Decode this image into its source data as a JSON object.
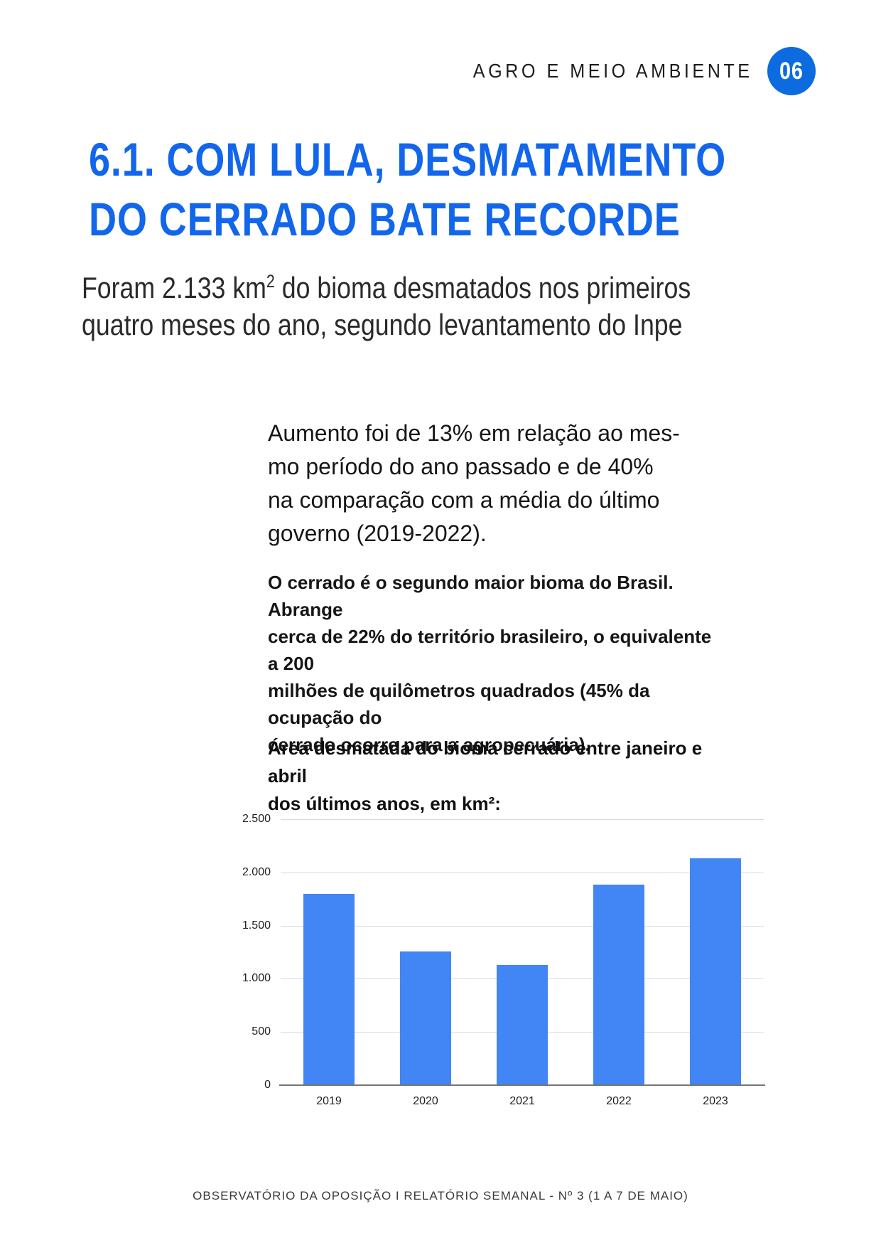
{
  "page_header": {
    "section_label": "AGRO E MEIO AMBIENTE",
    "page_badge": "06"
  },
  "article": {
    "title_line1": "6.1. COM LULA, DESMATAMENTO",
    "title_line2": "DO CERRADO BATE RECORDE",
    "subtitle_part1": "Foram 2.133 km",
    "subtitle_sup": "2",
    "subtitle_part2": " do bioma desmatados nos primeiros\nquatro meses do ano, segundo levantamento do Inpe",
    "lead_paragraph": "Aumento foi de 13% em relação ao mes-\nmo período do ano passado e de 40%\nna comparação com a média do último\ngoverno (2019-2022).",
    "body_paragraph": "O cerrado é o segundo maior bioma do Brasil. Abrange\ncerca de 22% do território brasileiro, o equivalente a 200\nmilhões de quilômetros quadrados (45% da ocupação do\ncerrado ocorre para a agropecuária).",
    "chart_heading": "Área desmatada do bioma cerrado entre janeiro e abril\ndos últimos anos, em km²:"
  },
  "footer": {
    "text": "OBSERVATÓRIO DA OPOSIÇÃO  I  RELATÓRIO SEMANAL - Nº 3 (1 A 7 DE MAIO)"
  },
  "colors": {
    "brand_blue": "#1266EC",
    "badge_blue": "#0D6BE0",
    "bar_blue": "#4285F4",
    "gridline": "#DADADA",
    "axis_line": "#757575",
    "footer_gray": "#3A3A3A"
  },
  "chart_data": {
    "type": "bar",
    "title": "Área desmatada do bioma cerrado entre janeiro e abril dos últimos anos, em km²",
    "xlabel": "",
    "ylabel": "km²",
    "categories": [
      "2019",
      "2020",
      "2021",
      "2022",
      "2023"
    ],
    "values": [
      1798,
      1256,
      1133,
      1883,
      2133
    ],
    "ylim": [
      0,
      2500
    ],
    "yticks": [
      {
        "value": 0,
        "label": "0"
      },
      {
        "value": 500,
        "label": "500"
      },
      {
        "value": 1000,
        "label": "1.000"
      },
      {
        "value": 1500,
        "label": "1.500"
      },
      {
        "value": 2000,
        "label": "2.000"
      },
      {
        "value": 2500,
        "label": "2.500"
      }
    ],
    "grid": true,
    "legend": "none",
    "bar_color": "#4285F4"
  }
}
